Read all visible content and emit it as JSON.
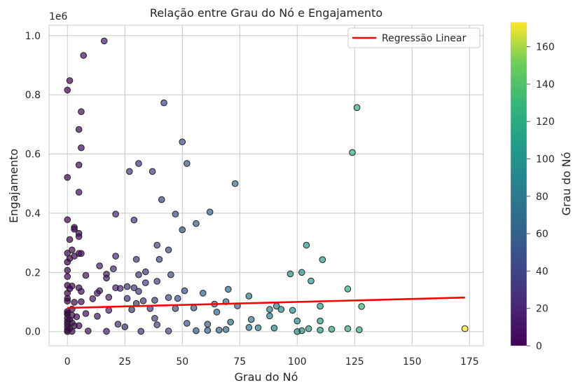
{
  "chart_data": {
    "type": "scatter",
    "title": "Relação entre Grau do Nó e Engajamento",
    "xlabel": "Grau do Nó",
    "ylabel": "Engajamento",
    "y_scale_label": "1e6",
    "xlim": [
      -8,
      181
    ],
    "ylim": [
      -48000,
      1035000
    ],
    "x_ticks": [
      0,
      25,
      50,
      75,
      100,
      125,
      150,
      175
    ],
    "x_tick_labels": [
      "0",
      "25",
      "50",
      "75",
      "100",
      "125",
      "150",
      "175"
    ],
    "y_ticks": [
      0,
      200000,
      400000,
      600000,
      800000,
      1000000
    ],
    "y_tick_labels": [
      "0.0",
      "0.2",
      "0.4",
      "0.6",
      "0.8",
      "1.0"
    ],
    "grid": true,
    "legend_position": "top-right",
    "legend": [
      {
        "label": "Regressão Linear",
        "color": "#ff0000"
      }
    ],
    "colorbar": {
      "label": "Grau do Nó",
      "min": 0,
      "max": 173,
      "ticks": [
        0,
        20,
        40,
        60,
        80,
        100,
        120,
        140,
        160
      ],
      "tick_labels": [
        "0",
        "20",
        "40",
        "60",
        "80",
        "100",
        "120",
        "140",
        "160"
      ],
      "colormap": "viridis"
    },
    "regression_line": {
      "x": [
        0,
        173
      ],
      "y": [
        80000,
        115000
      ],
      "color": "#ff0000"
    },
    "points": [
      [
        16,
        982000
      ],
      [
        7,
        933000
      ],
      [
        1,
        848000
      ],
      [
        0,
        816000
      ],
      [
        42,
        773000
      ],
      [
        126,
        757000
      ],
      [
        6,
        743000
      ],
      [
        5,
        683000
      ],
      [
        50,
        641000
      ],
      [
        6,
        621000
      ],
      [
        124,
        605000
      ],
      [
        31,
        568000
      ],
      [
        52,
        568000
      ],
      [
        5,
        563000
      ],
      [
        27,
        541000
      ],
      [
        37,
        541000
      ],
      [
        0,
        521000
      ],
      [
        73,
        500000
      ],
      [
        5,
        471000
      ],
      [
        41,
        446000
      ],
      [
        62,
        404000
      ],
      [
        21,
        397000
      ],
      [
        47,
        397000
      ],
      [
        0,
        378000
      ],
      [
        29,
        377000
      ],
      [
        56,
        365000
      ],
      [
        3,
        352000
      ],
      [
        3,
        346000
      ],
      [
        50,
        344000
      ],
      [
        5,
        332000
      ],
      [
        5,
        321000
      ],
      [
        1,
        311000
      ],
      [
        104,
        292000
      ],
      [
        39,
        292000
      ],
      [
        44,
        276000
      ],
      [
        2,
        276000
      ],
      [
        0,
        265000
      ],
      [
        5,
        264000
      ],
      [
        6,
        264000
      ],
      [
        3,
        255000
      ],
      [
        21,
        255000
      ],
      [
        1,
        247000
      ],
      [
        30,
        244000
      ],
      [
        40,
        244000
      ],
      [
        111,
        243000
      ],
      [
        0,
        235000
      ],
      [
        14,
        222000
      ],
      [
        20,
        212000
      ],
      [
        0,
        207000
      ],
      [
        34,
        202000
      ],
      [
        102,
        200000
      ],
      [
        97,
        195000
      ],
      [
        17,
        194000
      ],
      [
        31,
        192000
      ],
      [
        45,
        192000
      ],
      [
        8,
        190000
      ],
      [
        0,
        186000
      ],
      [
        17,
        181000
      ],
      [
        106,
        171000
      ],
      [
        39,
        170000
      ],
      [
        34,
        165000
      ],
      [
        0,
        156000
      ],
      [
        2,
        154000
      ],
      [
        26,
        152000
      ],
      [
        5,
        148000
      ],
      [
        21,
        148000
      ],
      [
        29,
        148000
      ],
      [
        23,
        146000
      ],
      [
        1,
        145000
      ],
      [
        122,
        144000
      ],
      [
        51,
        138000
      ],
      [
        14,
        138000
      ],
      [
        31,
        136000
      ],
      [
        70,
        143000
      ],
      [
        6,
        136000
      ],
      [
        0,
        130000
      ],
      [
        13,
        130000
      ],
      [
        59,
        130000
      ],
      [
        79,
        120000
      ],
      [
        44,
        115000
      ],
      [
        18,
        116000
      ],
      [
        0,
        112000
      ],
      [
        26,
        112000
      ],
      [
        48,
        112000
      ],
      [
        11,
        111000
      ],
      [
        38,
        106000
      ],
      [
        0,
        103000
      ],
      [
        33,
        104000
      ],
      [
        6,
        101000
      ],
      [
        3,
        99000
      ],
      [
        30,
        95000
      ],
      [
        69,
        101000
      ],
      [
        64,
        93000
      ],
      [
        74,
        87000
      ],
      [
        91,
        86000
      ],
      [
        110,
        86000
      ],
      [
        128,
        85000
      ],
      [
        88,
        75000
      ],
      [
        93,
        75000
      ],
      [
        98,
        72000
      ],
      [
        55,
        80000
      ],
      [
        47,
        78000
      ],
      [
        36,
        78000
      ],
      [
        2,
        76000
      ],
      [
        18,
        72000
      ],
      [
        28,
        74000
      ],
      [
        65,
        66000
      ],
      [
        8,
        61000
      ],
      [
        0,
        58000
      ],
      [
        13,
        52000
      ],
      [
        38,
        45000
      ],
      [
        100,
        36000
      ],
      [
        110,
        36000
      ],
      [
        88,
        53000
      ],
      [
        80,
        41000
      ],
      [
        71,
        32000
      ],
      [
        52,
        28000
      ],
      [
        61,
        25000
      ],
      [
        22,
        25000
      ],
      [
        39,
        23000
      ],
      [
        5,
        20000
      ],
      [
        25,
        16000
      ],
      [
        79,
        14000
      ],
      [
        83,
        13000
      ],
      [
        90,
        12000
      ],
      [
        105,
        10000
      ],
      [
        115,
        8000
      ],
      [
        122,
        10000
      ],
      [
        127,
        6000
      ],
      [
        110,
        5000
      ],
      [
        102,
        3000
      ],
      [
        100,
        0
      ],
      [
        69,
        7000
      ],
      [
        66,
        5000
      ],
      [
        61,
        4000
      ],
      [
        56,
        3000
      ],
      [
        44,
        2000
      ],
      [
        32,
        1000
      ],
      [
        17,
        1000
      ],
      [
        9,
        2000
      ],
      [
        2,
        1000
      ],
      [
        0,
        0
      ],
      [
        0,
        5000
      ],
      [
        1,
        10000
      ],
      [
        0,
        15000
      ],
      [
        3,
        20000
      ],
      [
        0,
        25000
      ],
      [
        2,
        30000
      ],
      [
        0,
        35000
      ],
      [
        1,
        40000
      ],
      [
        0,
        45000
      ],
      [
        4,
        50000
      ],
      [
        2,
        55000
      ],
      [
        0,
        62000
      ],
      [
        0,
        68000
      ],
      [
        173,
        10000
      ]
    ]
  }
}
